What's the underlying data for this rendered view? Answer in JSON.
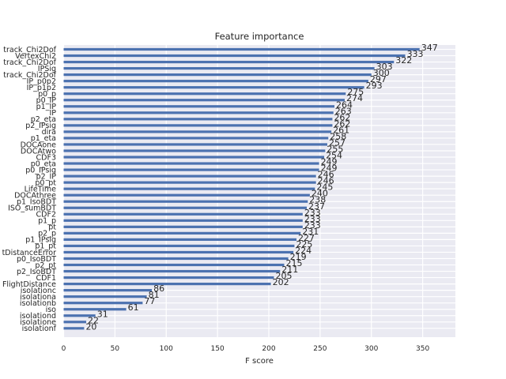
{
  "chart_data": {
    "type": "bar",
    "orientation": "horizontal",
    "title": "Feature importance",
    "xlabel": "F score",
    "ylabel": "",
    "xlim": [
      0,
      380
    ],
    "xticks": [
      0,
      50,
      100,
      150,
      200,
      250,
      300,
      350
    ],
    "grid": true,
    "bar_color": "#4c72b0",
    "background_color": "#eaeaf2",
    "categories": [
      "track_Chi2Dof",
      "VertexChi2",
      "track_Chi2Dof",
      "IPSig",
      "track_Chi2Dof",
      "IP_p0p2",
      "IP_p1p2",
      "p0_p",
      "p0_IP",
      "p1_IP",
      "IP",
      "p2_eta",
      "p2_IPsig",
      "dira",
      "p1_eta",
      "DOCAone",
      "DOCAtwo",
      "CDF3",
      "p0_eta",
      "p0_IPsig",
      "p2_IP",
      "p0_pt",
      "LifeTime",
      "DOCAthree",
      "p1_IsoBDT",
      "ISO_sumBDT",
      "CDF2",
      "p1_p",
      "pt",
      "p2_p",
      "p1_IPsig",
      "p1_pt",
      "tDistanceError",
      "p0_IsoBDT",
      "p2_pt",
      "p2_IsoBDT",
      "CDF1",
      "FlightDistance",
      "isolationc",
      "isolationa",
      "isolationb",
      "iso",
      "isolationd",
      "isolatione",
      "isolationf"
    ],
    "values": [
      347,
      333,
      322,
      303,
      300,
      297,
      293,
      275,
      274,
      264,
      263,
      262,
      262,
      261,
      258,
      257,
      255,
      254,
      249,
      249,
      246,
      246,
      245,
      240,
      238,
      237,
      233,
      233,
      233,
      231,
      227,
      225,
      224,
      219,
      215,
      211,
      205,
      202,
      86,
      81,
      77,
      61,
      31,
      22,
      20
    ]
  }
}
